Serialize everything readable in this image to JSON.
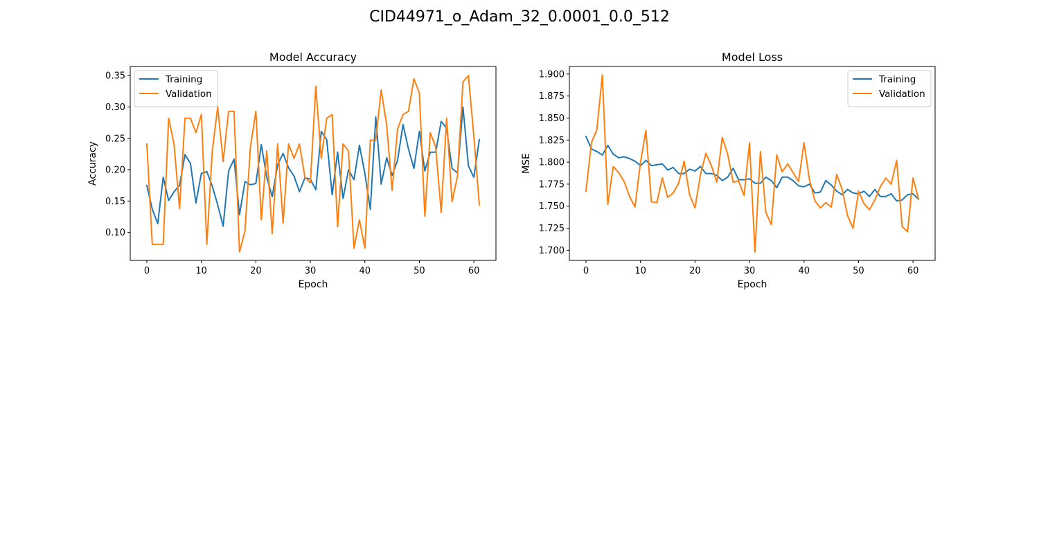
{
  "suptitle": "CID44971_o_Adam_32_0.0001_0.0_512",
  "chart_data": [
    {
      "type": "line",
      "title": "Model Accuracy",
      "xlabel": "Epoch",
      "ylabel": "Accuracy",
      "xlim": [
        -3.05,
        64.05
      ],
      "ylim": [
        0.0555,
        0.3645
      ],
      "xticks": [
        0,
        10,
        20,
        30,
        40,
        50,
        60
      ],
      "xtick_labels": [
        "0",
        "10",
        "20",
        "30",
        "40",
        "50",
        "60"
      ],
      "yticks": [
        0.1,
        0.15,
        0.2,
        0.25,
        0.3,
        0.35
      ],
      "ytick_labels": [
        "0.10",
        "0.15",
        "0.20",
        "0.25",
        "0.30",
        "0.35"
      ],
      "legend_loc": "upper left",
      "grid": false,
      "x": [
        0,
        1,
        2,
        3,
        4,
        5,
        6,
        7,
        8,
        9,
        10,
        11,
        12,
        13,
        14,
        15,
        16,
        17,
        18,
        19,
        20,
        21,
        22,
        23,
        24,
        25,
        26,
        27,
        28,
        29,
        30,
        31,
        32,
        33,
        34,
        35,
        36,
        37,
        38,
        39,
        40,
        41,
        42,
        43,
        44,
        45,
        46,
        47,
        48,
        49,
        50,
        51,
        52,
        53,
        54,
        55,
        56,
        57,
        58,
        59,
        60,
        61
      ],
      "series": [
        {
          "name": "Training",
          "color": "#1f77b4",
          "values": [
            0.175,
            0.137,
            0.114,
            0.188,
            0.151,
            0.165,
            0.175,
            0.224,
            0.21,
            0.147,
            0.194,
            0.197,
            0.174,
            0.144,
            0.11,
            0.198,
            0.217,
            0.128,
            0.181,
            0.176,
            0.178,
            0.24,
            0.188,
            0.157,
            0.208,
            0.226,
            0.203,
            0.19,
            0.165,
            0.187,
            0.185,
            0.168,
            0.261,
            0.248,
            0.16,
            0.228,
            0.154,
            0.2,
            0.184,
            0.239,
            0.194,
            0.137,
            0.284,
            0.177,
            0.219,
            0.191,
            0.215,
            0.272,
            0.233,
            0.202,
            0.261,
            0.198,
            0.228,
            0.228,
            0.277,
            0.266,
            0.202,
            0.195,
            0.3,
            0.206,
            0.188,
            0.248
          ]
        },
        {
          "name": "Validation",
          "color": "#ff7f0e",
          "values": [
            0.241,
            0.081,
            0.081,
            0.081,
            0.282,
            0.24,
            0.138,
            0.282,
            0.282,
            0.259,
            0.288,
            0.081,
            0.229,
            0.3,
            0.213,
            0.293,
            0.293,
            0.069,
            0.102,
            0.236,
            0.293,
            0.12,
            0.23,
            0.098,
            0.241,
            0.115,
            0.241,
            0.218,
            0.241,
            0.188,
            0.179,
            0.333,
            0.218,
            0.282,
            0.288,
            0.109,
            0.241,
            0.23,
            0.075,
            0.12,
            0.075,
            0.247,
            0.247,
            0.327,
            0.271,
            0.167,
            0.265,
            0.288,
            0.293,
            0.345,
            0.322,
            0.126,
            0.259,
            0.236,
            0.132,
            0.282,
            0.149,
            0.19,
            0.34,
            0.35,
            0.253,
            0.144
          ]
        }
      ]
    },
    {
      "type": "line",
      "title": "Model Loss",
      "xlabel": "Epoch",
      "ylabel": "MSE",
      "xlim": [
        -3.05,
        64.05
      ],
      "ylim": [
        1.6885,
        1.9085
      ],
      "xticks": [
        0,
        10,
        20,
        30,
        40,
        50,
        60
      ],
      "xtick_labels": [
        "0",
        "10",
        "20",
        "30",
        "40",
        "50",
        "60"
      ],
      "yticks": [
        1.7,
        1.725,
        1.75,
        1.775,
        1.8,
        1.825,
        1.85,
        1.875,
        1.9
      ],
      "ytick_labels": [
        "1.700",
        "1.725",
        "1.750",
        "1.775",
        "1.800",
        "1.825",
        "1.850",
        "1.875",
        "1.900"
      ],
      "legend_loc": "upper right",
      "grid": false,
      "x": [
        0,
        1,
        2,
        3,
        4,
        5,
        6,
        7,
        8,
        9,
        10,
        11,
        12,
        13,
        14,
        15,
        16,
        17,
        18,
        19,
        20,
        21,
        22,
        23,
        24,
        25,
        26,
        27,
        28,
        29,
        30,
        31,
        32,
        33,
        34,
        35,
        36,
        37,
        38,
        39,
        40,
        41,
        42,
        43,
        44,
        45,
        46,
        47,
        48,
        49,
        50,
        51,
        52,
        53,
        54,
        55,
        56,
        57,
        58,
        59,
        60,
        61
      ],
      "series": [
        {
          "name": "Training",
          "color": "#1f77b4",
          "values": [
            1.829,
            1.815,
            1.812,
            1.808,
            1.819,
            1.809,
            1.805,
            1.806,
            1.804,
            1.801,
            1.796,
            1.802,
            1.796,
            1.797,
            1.798,
            1.791,
            1.794,
            1.787,
            1.787,
            1.792,
            1.79,
            1.795,
            1.787,
            1.787,
            1.785,
            1.779,
            1.783,
            1.793,
            1.78,
            1.78,
            1.781,
            1.776,
            1.776,
            1.783,
            1.779,
            1.771,
            1.783,
            1.783,
            1.779,
            1.773,
            1.772,
            1.775,
            1.765,
            1.766,
            1.779,
            1.774,
            1.767,
            1.763,
            1.769,
            1.765,
            1.764,
            1.767,
            1.761,
            1.769,
            1.761,
            1.761,
            1.764,
            1.756,
            1.757,
            1.763,
            1.764,
            1.758
          ]
        },
        {
          "name": "Validation",
          "color": "#ff7f0e",
          "values": [
            1.767,
            1.822,
            1.837,
            1.899,
            1.752,
            1.795,
            1.788,
            1.778,
            1.761,
            1.749,
            1.8,
            1.836,
            1.755,
            1.754,
            1.782,
            1.76,
            1.765,
            1.776,
            1.801,
            1.763,
            1.748,
            1.786,
            1.81,
            1.796,
            1.777,
            1.828,
            1.809,
            1.777,
            1.779,
            1.762,
            1.822,
            1.698,
            1.812,
            1.743,
            1.729,
            1.808,
            1.789,
            1.798,
            1.788,
            1.778,
            1.822,
            1.78,
            1.756,
            1.748,
            1.754,
            1.749,
            1.786,
            1.769,
            1.739,
            1.725,
            1.767,
            1.753,
            1.746,
            1.757,
            1.772,
            1.782,
            1.775,
            1.802,
            1.727,
            1.721,
            1.782,
            1.758
          ]
        }
      ]
    }
  ]
}
